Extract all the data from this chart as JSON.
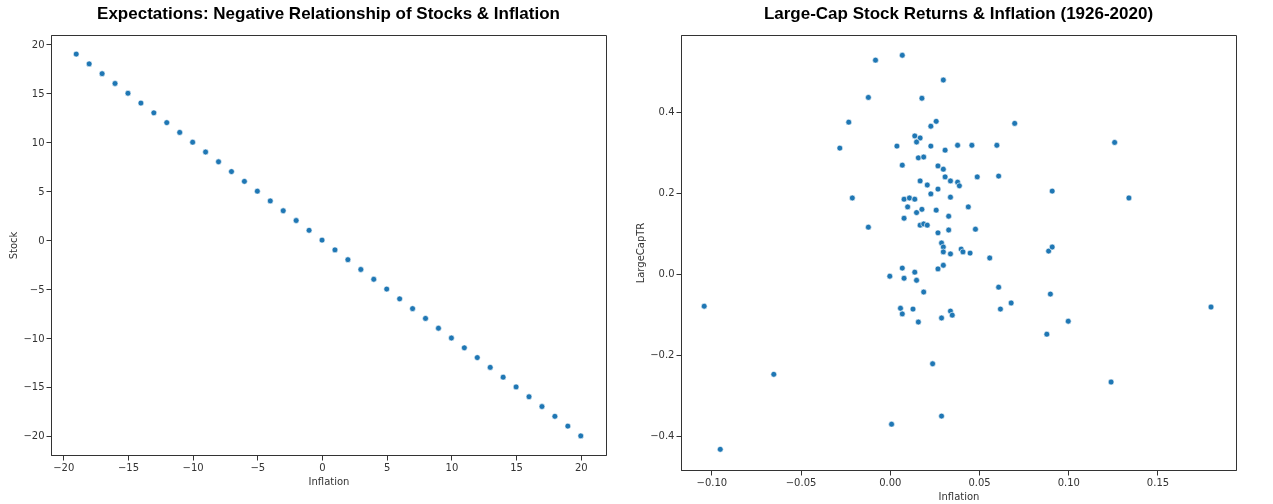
{
  "chart_data": [
    {
      "type": "scatter",
      "title": "Expectations: Negative Relationship of Stocks & Inflation",
      "xlabel": "Inflation",
      "ylabel": "Stock",
      "marker": "circle",
      "grid": false,
      "xlim": [
        -20.95,
        21.95
      ],
      "ylim": [
        -21.95,
        20.95
      ],
      "xticks": [
        {
          "value": -20,
          "label": "−20"
        },
        {
          "value": -15,
          "label": "−15"
        },
        {
          "value": -10,
          "label": "−10"
        },
        {
          "value": -5,
          "label": "−5"
        },
        0,
        5,
        10,
        15,
        20
      ],
      "yticks": [
        {
          "value": -20,
          "label": "−20"
        },
        {
          "value": -15,
          "label": "−15"
        },
        {
          "value": -10,
          "label": "−10"
        },
        {
          "value": -5,
          "label": "−5"
        },
        0,
        5,
        10,
        15,
        20
      ],
      "series": [
        {
          "color": "#1f77b4",
          "x": [
            -19,
            -18,
            -17,
            -16,
            -15,
            -14,
            -13,
            -12,
            -11,
            -10,
            -9,
            -8,
            -7,
            -6,
            -5,
            -4,
            -3,
            -2,
            -1,
            0,
            1,
            2,
            3,
            4,
            5,
            6,
            7,
            8,
            9,
            10,
            11,
            12,
            13,
            14,
            15,
            16,
            17,
            18,
            19,
            20
          ],
          "values": [
            19,
            18,
            17,
            16,
            15,
            14,
            13,
            12,
            11,
            10,
            9,
            8,
            7,
            6,
            5,
            4,
            3,
            2,
            1,
            0,
            -1,
            -2,
            -3,
            -4,
            -5,
            -6,
            -7,
            -8,
            -9,
            -10,
            -11,
            -12,
            -13,
            -14,
            -15,
            -16,
            -17,
            -18,
            -19,
            -20
          ]
        }
      ]
    },
    {
      "type": "scatter",
      "title": "Large-Cap Stock Returns & Inflation (1926-2020)",
      "xlabel": "Inflation",
      "ylabel": "LargeCapTR",
      "marker": "circle",
      "grid": false,
      "xlim": [
        -0.117,
        0.194
      ],
      "ylim": [
        -0.484,
        0.589
      ],
      "xticks": [
        {
          "value": -0.1,
          "label": "−0.10"
        },
        {
          "value": -0.05,
          "label": "−0.05"
        },
        {
          "value": 0,
          "label": "0.00"
        },
        {
          "value": 0.05,
          "label": "0.05"
        },
        {
          "value": 0.1,
          "label": "0.10"
        },
        {
          "value": 0.15,
          "label": "0.15"
        }
      ],
      "yticks": [
        {
          "value": -0.4,
          "label": "−0.4"
        },
        {
          "value": -0.2,
          "label": "−0.2"
        },
        {
          "value": 0,
          "label": "0.0"
        },
        0.2,
        0.4
      ],
      "series": [
        {
          "color": "#1f77b4",
          "x": [
            -0.104,
            -0.095,
            -0.065,
            -0.008,
            0.007,
            -0.012,
            0.018,
            -0.023,
            -0.028,
            0.004,
            0.007,
            -0.021,
            -0.012,
            0.008,
            0.01,
            0.011,
            0.014,
            0.008,
            0.015,
            0.018,
            0.017,
            0.019,
            0.021,
            0.017,
            0.021,
            0.023,
            0.027,
            0.026,
            0.016,
            0.019,
            0.014,
            0.017,
            0.015,
            0.023,
            0.026,
            0.023,
            0.027,
            0.027,
            0.0,
            0.007,
            0.008,
            0.014,
            0.015,
            0.019,
            0.006,
            0.007,
            0.013,
            0.016,
            0.024,
            0.001,
            0.027,
            0.029,
            0.029,
            0.029,
            0.03,
            0.07,
            0.038,
            0.046,
            0.06,
            0.126,
            0.031,
            0.03,
            0.031,
            0.034,
            0.038,
            0.039,
            0.049,
            0.061,
            0.091,
            0.134,
            0.034,
            0.044,
            0.033,
            0.033,
            0.048,
            0.03,
            0.03,
            0.034,
            0.04,
            0.041,
            0.045,
            0.056,
            0.089,
            0.091,
            0.03,
            0.061,
            0.09,
            0.068,
            0.062,
            0.18,
            0.034,
            0.035,
            0.1,
            0.088,
            0.124
          ],
          "values": [
            -0.08,
            -0.433,
            -0.248,
            0.527,
            0.539,
            0.435,
            0.433,
            0.374,
            0.31,
            0.315,
            0.268,
            0.187,
            0.115,
            0.184,
            0.165,
            0.187,
            0.184,
            0.137,
            0.151,
            0.159,
            0.12,
            0.123,
            0.12,
            0.229,
            0.219,
            0.197,
            0.209,
            0.157,
            0.286,
            0.288,
            0.34,
            0.335,
            0.325,
            0.364,
            0.376,
            0.315,
            0.266,
            0.101,
            -0.006,
            0.014,
            -0.011,
            0.004,
            -0.016,
            -0.045,
            -0.085,
            -0.099,
            -0.087,
            -0.119,
            -0.222,
            -0.371,
            0.012,
            -0.109,
            -0.351,
            0.076,
            0.478,
            0.371,
            0.317,
            0.317,
            0.317,
            0.324,
            0.305,
            0.258,
            0.239,
            0.229,
            0.226,
            0.217,
            0.239,
            0.241,
            0.204,
            0.187,
            0.189,
            0.165,
            0.142,
            0.108,
            0.11,
            0.066,
            0.054,
            0.049,
            0.061,
            0.054,
            0.051,
            0.039,
            0.056,
            0.066,
            0.021,
            -0.033,
            -0.05,
            -0.072,
            -0.087,
            -0.082,
            -0.092,
            -0.102,
            -0.117,
            -0.149,
            -0.267
          ]
        }
      ]
    }
  ]
}
